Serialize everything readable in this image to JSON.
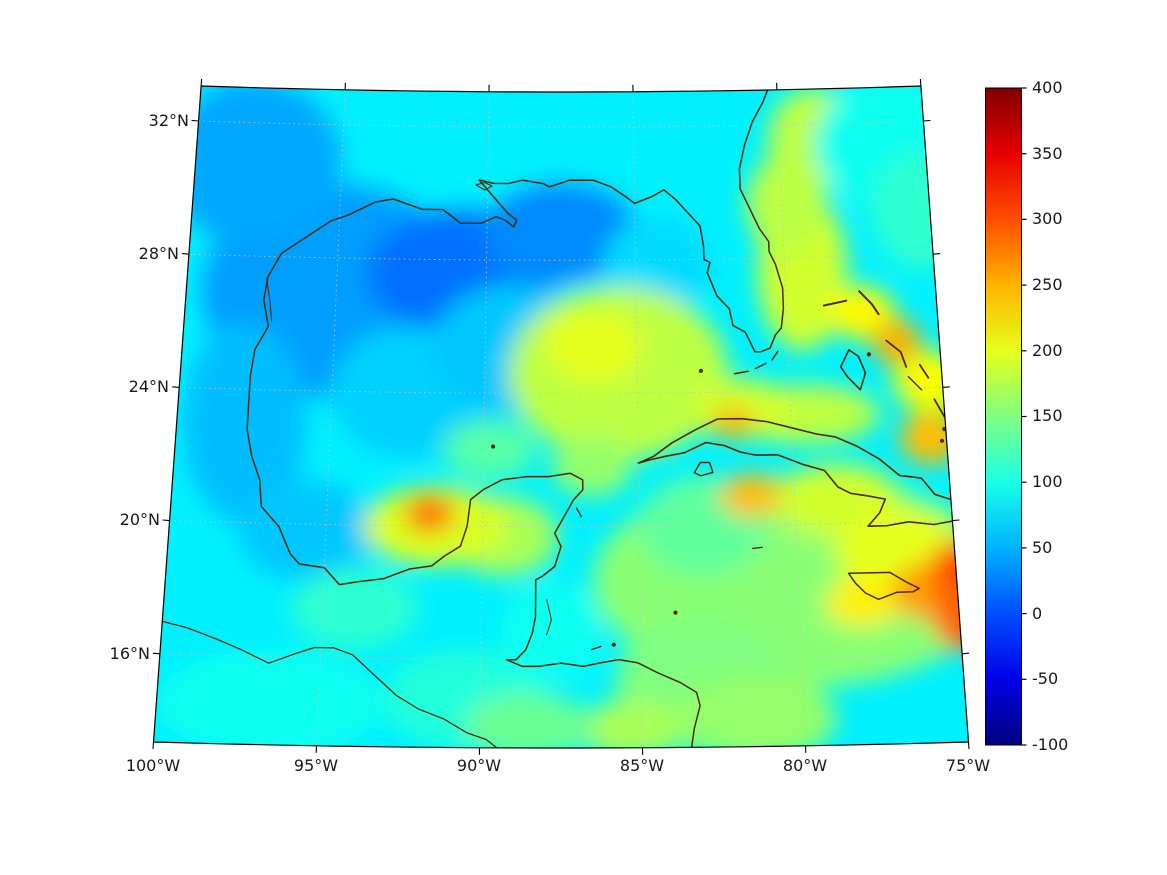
{
  "figure": {
    "background_color": "#ffffff"
  },
  "axes": {
    "x_tick_labels": [
      "100°W",
      "95°W",
      "90°W",
      "85°W",
      "80°W",
      "75°W"
    ],
    "y_tick_labels": [
      "32°N",
      "28°N",
      "24°N",
      "20°N",
      "16°N"
    ],
    "x_tick_lons": [
      -100,
      -95,
      -90,
      -85,
      -80,
      -75
    ],
    "y_tick_lats": [
      32,
      28,
      24,
      20,
      16
    ],
    "grid_lons": [
      -95,
      -90,
      -85,
      -80
    ],
    "grid_lats": [
      16,
      20,
      24,
      28,
      32
    ],
    "lat_range": [
      13.35,
      33.05
    ],
    "lon_range": [
      -100,
      -75
    ]
  },
  "map": {
    "coastline_color": "#4d2b08",
    "gridline_color": "#b9c7bf"
  },
  "colorbar": {
    "tick_labels": [
      "400",
      "350",
      "300",
      "250",
      "200",
      "150",
      "100",
      "50",
      "0",
      "-50",
      "-100"
    ],
    "tick_values": [
      400,
      350,
      300,
      250,
      200,
      150,
      100,
      50,
      0,
      -50,
      -100
    ],
    "value_range": [
      -100,
      400
    ],
    "colormap": "jet",
    "gradient_stops": [
      "#800000",
      "#e60000",
      "#ff4d00",
      "#ffb300",
      "#e6ff1a",
      "#80ff80",
      "#1affe6",
      "#00b3ff",
      "#004dff",
      "#0000e6",
      "#000080"
    ]
  },
  "chart_data": {
    "type": "heatmap",
    "region": "Gulf of Mexico and northwest Caribbean Sea",
    "x_axis": "longitude",
    "y_axis": "latitude",
    "colormap": "jet",
    "value_range": [
      -100,
      400
    ],
    "background_value": 80,
    "features": [
      {
        "lon": -95.0,
        "lat": 27.0,
        "rlon": 4.5,
        "rlat": 3.2,
        "value": 40
      },
      {
        "lon": -90.8,
        "lat": 27.6,
        "rlon": 3.2,
        "rlat": 1.9,
        "value": 18
      },
      {
        "lon": -87.5,
        "lat": 28.8,
        "rlon": 2.6,
        "rlat": 1.5,
        "value": 30
      },
      {
        "lon": -98.0,
        "lat": 30.8,
        "rlon": 3.0,
        "rlat": 2.5,
        "value": 45
      },
      {
        "lon": -97.8,
        "lat": 23.0,
        "rlon": 2.0,
        "rlat": 3.0,
        "value": 55
      },
      {
        "lon": -95.6,
        "lat": 19.8,
        "rlon": 2.2,
        "rlat": 1.5,
        "value": 60
      },
      {
        "lon": -92.5,
        "lat": 24.0,
        "rlon": 2.5,
        "rlat": 2.0,
        "value": 65
      },
      {
        "lon": -89.0,
        "lat": 25.3,
        "rlon": 2.8,
        "rlat": 2.0,
        "value": 60
      },
      {
        "lon": -84.3,
        "lat": 27.8,
        "rlon": 1.8,
        "rlat": 1.5,
        "value": 70
      },
      {
        "lon": -96.5,
        "lat": 14.6,
        "rlon": 3.5,
        "rlat": 1.6,
        "value": 95
      },
      {
        "lon": -90.5,
        "lat": 14.8,
        "rlon": 2.5,
        "rlat": 1.5,
        "value": 105
      },
      {
        "lon": -94.0,
        "lat": 17.5,
        "rlon": 2.0,
        "rlat": 1.2,
        "value": 110
      },
      {
        "lon": -80.0,
        "lat": 18.3,
        "rlon": 6.5,
        "rlat": 3.2,
        "value": 155
      },
      {
        "lon": -83.2,
        "lat": 15.3,
        "rlon": 2.6,
        "rlat": 2.0,
        "value": 150
      },
      {
        "lon": -83.0,
        "lat": 20.0,
        "rlon": 2.0,
        "rlat": 1.5,
        "value": 135
      },
      {
        "lon": -89.8,
        "lat": 22.3,
        "rlon": 1.5,
        "rlat": 0.9,
        "value": 130
      },
      {
        "lon": -87.8,
        "lat": 16.8,
        "rlon": 1.6,
        "rlat": 1.5,
        "value": 95
      },
      {
        "lon": -85.6,
        "lat": 24.6,
        "rlon": 3.6,
        "rlat": 2.6,
        "value": 180
      },
      {
        "lon": -86.4,
        "lat": 25.4,
        "rlon": 1.6,
        "rlat": 1.1,
        "value": 200
      },
      {
        "lon": -89.3,
        "lat": 19.7,
        "rlon": 1.7,
        "rlat": 1.2,
        "value": 170
      },
      {
        "lon": -91.5,
        "lat": 20.0,
        "rlon": 2.3,
        "rlat": 1.2,
        "value": 195
      },
      {
        "lon": -86.5,
        "lat": 21.8,
        "rlon": 1.3,
        "rlat": 0.9,
        "value": 160
      },
      {
        "lon": -78.6,
        "lat": 20.7,
        "rlon": 2.0,
        "rlat": 1.1,
        "value": 190
      },
      {
        "lon": -76.8,
        "lat": 19.1,
        "rlon": 2.0,
        "rlat": 1.3,
        "value": 200
      },
      {
        "lon": -79.5,
        "lat": 23.3,
        "rlon": 2.4,
        "rlat": 0.9,
        "value": 180
      },
      {
        "lon": -81.6,
        "lat": 23.5,
        "rlon": 1.7,
        "rlat": 0.9,
        "value": 190
      },
      {
        "lon": -79.4,
        "lat": 27.6,
        "rlon": 1.5,
        "rlat": 2.4,
        "value": 190
      },
      {
        "lon": -79.9,
        "lat": 29.6,
        "rlon": 1.3,
        "rlat": 1.5,
        "value": 180
      },
      {
        "lon": -78.8,
        "lat": 31.5,
        "rlon": 1.6,
        "rlat": 1.6,
        "value": 180
      },
      {
        "lon": -76.0,
        "lat": 31.3,
        "rlon": 2.8,
        "rlat": 2.0,
        "value": 95
      },
      {
        "lon": -75.2,
        "lat": 29.3,
        "rlon": 1.8,
        "rlat": 1.8,
        "value": 110
      },
      {
        "lon": -77.5,
        "lat": 26.3,
        "rlon": 1.1,
        "rlat": 0.8,
        "value": 215
      },
      {
        "lon": -75.4,
        "lat": 24.2,
        "rlon": 1.2,
        "rlat": 0.9,
        "value": 210
      },
      {
        "lon": -85.3,
        "lat": 13.9,
        "rlon": 1.6,
        "rlat": 0.9,
        "value": 170
      },
      {
        "lon": -81.5,
        "lat": 14.2,
        "rlon": 2.5,
        "rlat": 1.3,
        "value": 160
      },
      {
        "lon": -88.5,
        "lat": 14.0,
        "rlon": 2.0,
        "rlat": 1.0,
        "value": 140
      },
      {
        "lon": -78.0,
        "lat": 17.6,
        "rlon": 1.2,
        "rlat": 0.7,
        "value": 220
      },
      {
        "lon": -91.7,
        "lat": 20.35,
        "rlon": 0.8,
        "rlat": 0.55,
        "value": 285
      },
      {
        "lon": -81.9,
        "lat": 23.1,
        "rlon": 0.7,
        "rlat": 0.45,
        "value": 250
      },
      {
        "lon": -76.4,
        "lat": 25.4,
        "rlon": 0.8,
        "rlat": 0.7,
        "value": 250
      },
      {
        "lon": -75.5,
        "lat": 22.5,
        "rlon": 1.0,
        "rlat": 0.8,
        "value": 245
      },
      {
        "lon": -81.4,
        "lat": 20.9,
        "rlon": 1.0,
        "rlat": 0.65,
        "value": 245
      },
      {
        "lon": -75.9,
        "lat": 17.9,
        "rlon": 1.2,
        "rlat": 0.85,
        "value": 260
      },
      {
        "lon": -74.9,
        "lat": 18.5,
        "rlon": 0.9,
        "rlat": 0.9,
        "value": 300
      },
      {
        "lon": -74.9,
        "lat": 17.1,
        "rlon": 0.9,
        "rlat": 1.0,
        "value": 290
      }
    ]
  }
}
